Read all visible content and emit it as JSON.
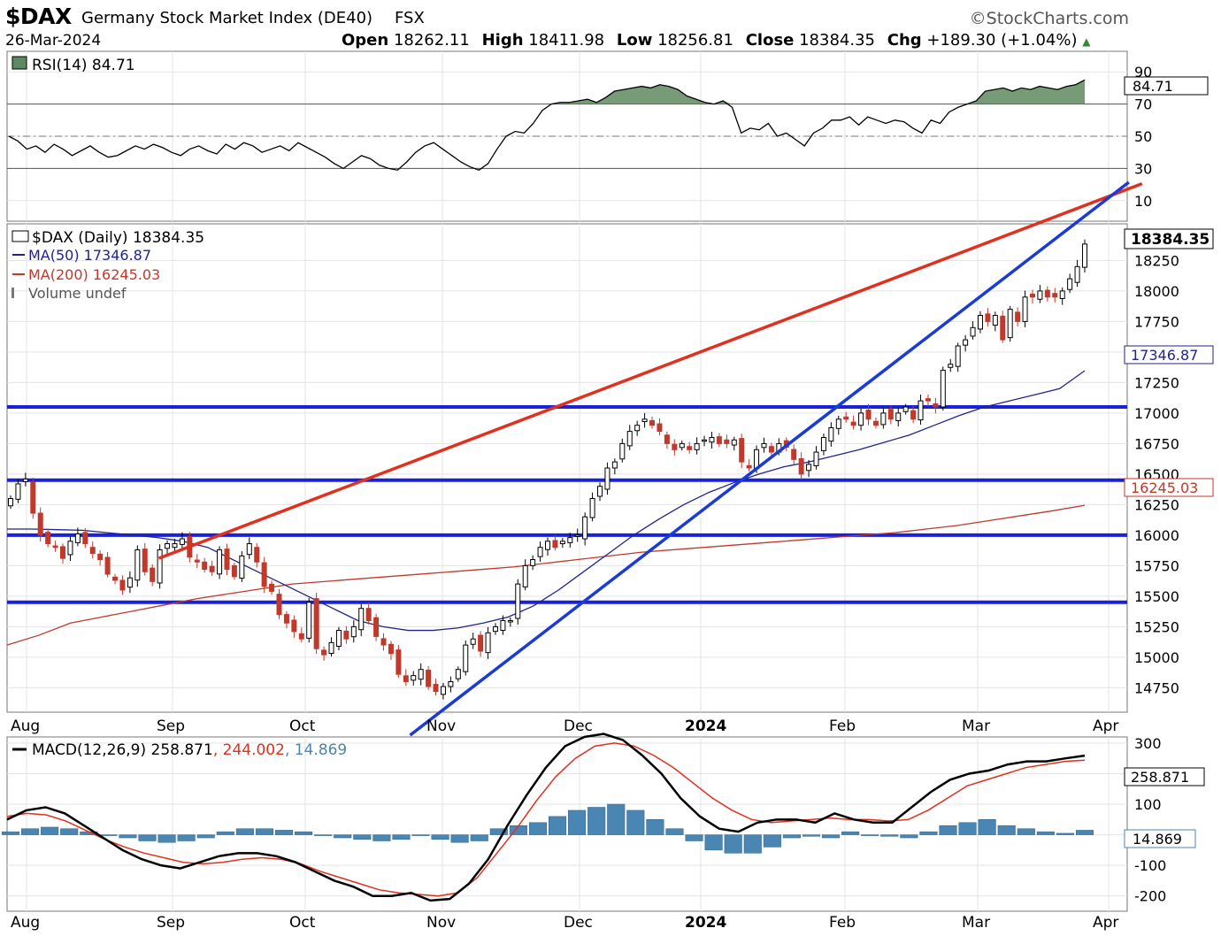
{
  "header": {
    "symbol": "$DAX",
    "name": "Germany Stock Market Index (DE40)",
    "exchange": "FSX",
    "brand": "©StockCharts.com",
    "date": "26-Mar-2024",
    "open_label": "Open",
    "open": "18262.11",
    "high_label": "High",
    "high": "18411.98",
    "low_label": "Low",
    "low": "18256.81",
    "close_label": "Close",
    "close": "18384.35",
    "chg_label": "Chg",
    "chg": "+189.30 (+1.04%)"
  },
  "chart_data": [
    {
      "type": "line",
      "panel": "rsi",
      "legend": "RSI(14) 84.71",
      "last_value_label": "84.71",
      "ylim": [
        0,
        100
      ],
      "yticks": [
        "10",
        "30",
        "50",
        "70",
        "90"
      ],
      "reference_lines": [
        30,
        50,
        70
      ],
      "series": [
        {
          "name": "RSI(14)",
          "values": [
            50,
            47,
            42,
            44,
            40,
            45,
            42,
            38,
            41,
            44,
            40,
            37,
            38,
            41,
            44,
            42,
            45,
            43,
            40,
            38,
            42,
            44,
            41,
            39,
            45,
            42,
            46,
            44,
            40,
            42,
            44,
            41,
            46,
            43,
            40,
            37,
            33,
            30,
            34,
            38,
            36,
            32,
            30,
            29,
            34,
            40,
            44,
            46,
            42,
            38,
            34,
            31,
            29,
            33,
            42,
            50,
            53,
            52,
            58,
            66,
            70,
            71,
            71,
            72,
            73,
            71,
            74,
            78,
            79,
            80,
            81,
            80,
            82,
            81,
            79,
            75,
            73,
            71,
            70,
            72,
            68,
            52,
            55,
            54,
            58,
            50,
            52,
            48,
            44,
            52,
            55,
            60,
            60,
            62,
            57,
            62,
            60,
            58,
            60,
            59,
            55,
            52,
            60,
            58,
            65,
            68,
            70,
            72,
            78,
            79,
            80,
            78,
            80,
            79,
            81,
            80,
            79,
            81,
            82,
            85
          ]
        }
      ],
      "x_range": [
        "2023-07-26",
        "2024-03-26"
      ]
    },
    {
      "type": "candlestick",
      "panel": "price",
      "legend": "$DAX (Daily) 18384.35",
      "ylim": [
        14550,
        18550
      ],
      "yticks": [
        "14750",
        "15000",
        "15250",
        "15500",
        "15750",
        "16000",
        "16250",
        "16500",
        "16750",
        "17000",
        "17250",
        "17500",
        "17750",
        "18000",
        "18250"
      ],
      "xticks": [
        "Aug",
        "Sep",
        "Oct",
        "Nov",
        "Dec",
        "2024",
        "Feb",
        "Mar",
        "Apr"
      ],
      "last_close_label": "18384.35",
      "close": [
        16300,
        16420,
        16460,
        16180,
        16000,
        15930,
        15900,
        15810,
        15950,
        16010,
        15930,
        15850,
        15800,
        15680,
        15630,
        15550,
        15650,
        15880,
        15700,
        15620,
        15880,
        15930,
        15930,
        15970,
        15820,
        15780,
        15720,
        15700,
        15880,
        15720,
        15660,
        15830,
        15930,
        15780,
        15580,
        15540,
        15350,
        15280,
        15210,
        15150,
        15450,
        15070,
        15020,
        15120,
        15220,
        15150,
        15250,
        15400,
        15300,
        15170,
        15100,
        15030,
        14860,
        14800,
        14850,
        14900,
        14760,
        14720,
        14760,
        14800,
        14900,
        15100,
        15150,
        15050,
        15200,
        15250,
        15300,
        15300,
        15600,
        15750,
        15800,
        15900,
        15950,
        15900,
        15950,
        15980,
        16000,
        16150,
        16300,
        16400,
        16550,
        16600,
        16750,
        16850,
        16900,
        16950,
        16900,
        16850,
        16750,
        16700,
        16750,
        16700,
        16750,
        16780,
        16800,
        16750,
        16750,
        16780,
        16600,
        16550,
        16700,
        16750,
        16680,
        16750,
        16720,
        16620,
        16500,
        16580,
        16680,
        16800,
        16880,
        16950,
        16950,
        16900,
        17000,
        16950,
        16900,
        17000,
        16950,
        17000,
        17050,
        16950,
        17100,
        17100,
        17050,
        17350,
        17400,
        17550,
        17600,
        17700,
        17800,
        17750,
        17800,
        17600,
        17850,
        17750,
        17950,
        17950,
        18000,
        17950,
        17950,
        18000,
        18100,
        18200,
        18384.35
      ],
      "series": [
        {
          "name": "MA(50)",
          "legend": "MA(50) 17346.87",
          "last_value_label": "17346.87",
          "values": [
            16050,
            16050,
            16045,
            16040,
            16020,
            16000,
            15980,
            15950,
            15900,
            15800,
            15700,
            15600,
            15500,
            15400,
            15300,
            15250,
            15220,
            15220,
            15240,
            15280,
            15330,
            15420,
            15550,
            15700,
            15850,
            16000,
            16130,
            16250,
            16350,
            16430,
            16500,
            16560,
            16600,
            16650,
            16700,
            16760,
            16820,
            16900,
            16980,
            17050,
            17100,
            17150,
            17200,
            17346.87
          ]
        },
        {
          "name": "MA(200)",
          "legend": "MA(200) 16245.03",
          "last_value_label": "16245.03",
          "values": [
            15100,
            15180,
            15280,
            15330,
            15380,
            15430,
            15480,
            15520,
            15560,
            15600,
            15620,
            15640,
            15660,
            15680,
            15700,
            15720,
            15740,
            15770,
            15800,
            15830,
            15860,
            15880,
            15900,
            15920,
            15940,
            15960,
            15980,
            16000,
            16020,
            16050,
            16080,
            16120,
            16160,
            16200,
            16245.03
          ]
        },
        {
          "name": "Volume",
          "legend": "Volume undef"
        }
      ],
      "annotations": {
        "horizontal_lines": [
          17050,
          16450,
          16000,
          15450
        ],
        "trendline_red": [
          [
            "2023-08-29",
            15810
          ],
          [
            "2024-03-26",
            18700
          ]
        ],
        "trendline_blue": [
          [
            "2023-10-25",
            14150
          ],
          [
            "2024-03-26",
            18600
          ]
        ]
      }
    },
    {
      "type": "line",
      "panel": "macd",
      "legend_name": "MACD(12,26,9)",
      "macd_label": "258.871",
      "signal_label": "244.002",
      "hist_label": "14.869",
      "ylim": [
        -250,
        320
      ],
      "yticks": [
        "-200",
        "-100",
        "0",
        "100",
        "200",
        "300"
      ],
      "xticks": [
        "Aug",
        "Sep",
        "Oct",
        "Nov",
        "Dec",
        "2024",
        "Feb",
        "Mar",
        "Apr"
      ],
      "series": [
        {
          "name": "MACD",
          "values": [
            50,
            80,
            90,
            70,
            30,
            -10,
            -50,
            -80,
            -100,
            -110,
            -90,
            -70,
            -60,
            -60,
            -70,
            -90,
            -120,
            -150,
            -170,
            -200,
            -200,
            -190,
            -215,
            -210,
            -160,
            -80,
            30,
            130,
            220,
            290,
            320,
            330,
            310,
            260,
            200,
            120,
            60,
            20,
            10,
            40,
            50,
            50,
            40,
            70,
            50,
            40,
            40,
            90,
            140,
            180,
            200,
            210,
            230,
            240,
            240,
            250,
            258.871
          ]
        },
        {
          "name": "Signal",
          "values": [
            60,
            70,
            65,
            45,
            15,
            -15,
            -40,
            -60,
            -75,
            -90,
            -95,
            -90,
            -80,
            -75,
            -80,
            -95,
            -120,
            -140,
            -160,
            -180,
            -190,
            -195,
            -200,
            -190,
            -140,
            -60,
            20,
            110,
            190,
            250,
            290,
            300,
            290,
            260,
            220,
            170,
            120,
            80,
            50,
            40,
            45,
            50,
            55,
            50,
            50,
            45,
            50,
            80,
            120,
            160,
            180,
            200,
            220,
            230,
            240,
            244.002
          ]
        },
        {
          "name": "Histogram",
          "values": [
            10,
            20,
            25,
            20,
            10,
            0,
            -10,
            -20,
            -25,
            -20,
            -10,
            10,
            20,
            20,
            15,
            10,
            0,
            -10,
            -15,
            -20,
            -15,
            0,
            -15,
            -25,
            -20,
            20,
            30,
            40,
            60,
            80,
            90,
            100,
            80,
            50,
            20,
            -20,
            -50,
            -60,
            -60,
            -40,
            -10,
            -5,
            -10,
            10,
            0,
            -5,
            -10,
            10,
            30,
            40,
            50,
            30,
            20,
            10,
            5,
            14.869
          ]
        }
      ]
    }
  ]
}
